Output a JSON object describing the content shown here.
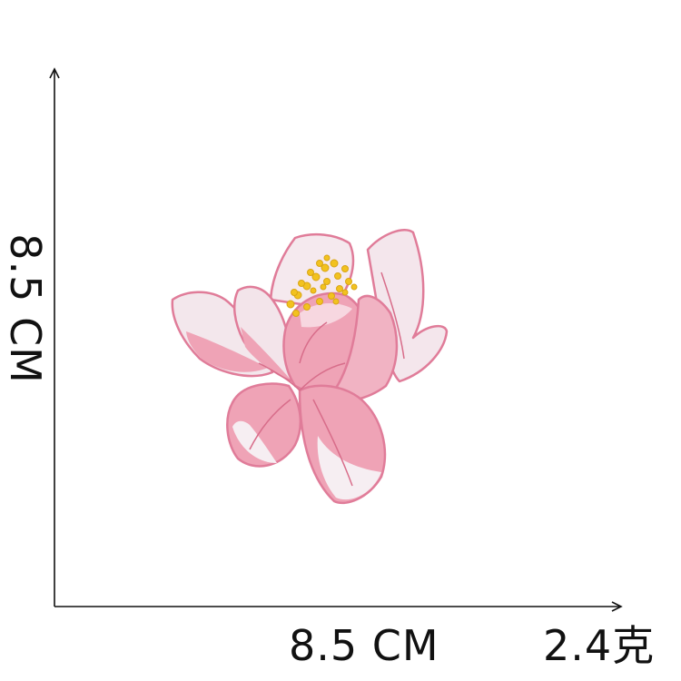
{
  "dimensions": {
    "height_label": "8.5 CM",
    "width_label": "8.5 CM",
    "weight_label": "2.4克"
  },
  "product": {
    "icon": "embroidered-lotus-flower-patch",
    "colors": {
      "petal_pink": "#EFA3B6",
      "petal_edge": "#E07C99",
      "petal_white": "#F6EEF2",
      "stamen_yellow": "#F2C21F",
      "axis": "#111111"
    }
  }
}
